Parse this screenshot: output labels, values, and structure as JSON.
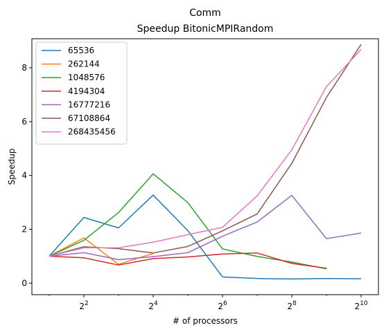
{
  "chart_data": {
    "type": "line",
    "title": "Comm",
    "subtitle": "Speedup BitonicMPIRandom",
    "xlabel": "# of processors",
    "ylabel": "Speedup",
    "x_scale": "log2",
    "x": [
      2,
      4,
      8,
      16,
      32,
      64,
      128,
      256,
      512,
      1024
    ],
    "xlim": [
      1.414,
      1448.2
    ],
    "ylim": [
      -0.43,
      9.08
    ],
    "x_ticks": [
      {
        "value": 4,
        "base": "2",
        "exp": "2"
      },
      {
        "value": 16,
        "base": "2",
        "exp": "4"
      },
      {
        "value": 64,
        "base": "2",
        "exp": "6"
      },
      {
        "value": 256,
        "base": "2",
        "exp": "8"
      },
      {
        "value": 1024,
        "base": "2",
        "exp": "10"
      }
    ],
    "y_ticks": [
      {
        "value": 0,
        "label": "0"
      },
      {
        "value": 2,
        "label": "2"
      },
      {
        "value": 4,
        "label": "4"
      },
      {
        "value": 6,
        "label": "6"
      },
      {
        "value": 8,
        "label": "8"
      }
    ],
    "grid": false,
    "legend_position": "upper-left",
    "series": [
      {
        "name": "65536",
        "color": "#1f77b4",
        "values": [
          1.0,
          2.44,
          2.05,
          3.27,
          1.95,
          0.23,
          0.17,
          0.15,
          0.17,
          0.16
        ]
      },
      {
        "name": "262144",
        "color": "#ff7f0e",
        "values": [
          1.0,
          1.68,
          0.7,
          1.1,
          null,
          null,
          null,
          null,
          null,
          null
        ]
      },
      {
        "name": "1048576",
        "color": "#2ca02c",
        "values": [
          1.0,
          1.59,
          2.62,
          4.06,
          2.99,
          1.27,
          0.99,
          0.78,
          0.53,
          null
        ]
      },
      {
        "name": "4194304",
        "color": "#d62728",
        "values": [
          1.0,
          0.94,
          0.67,
          0.91,
          0.97,
          1.08,
          1.12,
          0.73,
          0.55,
          null
        ]
      },
      {
        "name": "16777216",
        "color": "#9467bd",
        "values": [
          1.0,
          1.13,
          0.87,
          0.98,
          1.13,
          1.74,
          2.27,
          3.26,
          1.65,
          1.86
        ]
      },
      {
        "name": "67108864",
        "color": "#8c564b",
        "values": [
          1.0,
          1.35,
          1.28,
          1.12,
          1.36,
          1.94,
          2.57,
          4.45,
          6.9,
          8.87
        ]
      },
      {
        "name": "268435456",
        "color": "#e377c2",
        "values": [
          1.0,
          1.31,
          1.31,
          1.52,
          1.8,
          2.07,
          3.24,
          4.95,
          7.3,
          8.68
        ]
      }
    ]
  }
}
